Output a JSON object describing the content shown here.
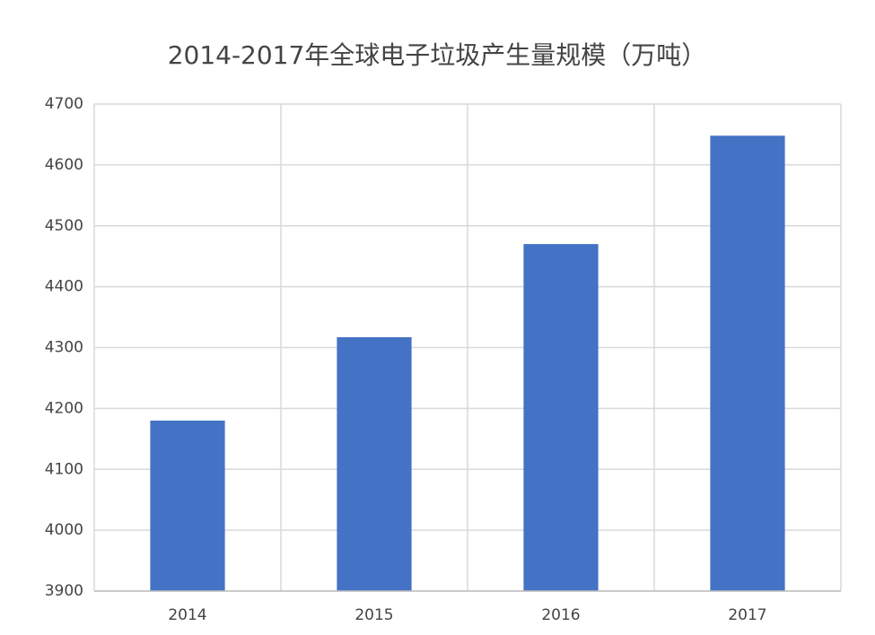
{
  "chart_data": {
    "type": "bar",
    "title": "2014-2017年全球电子垃圾产生量规模（万吨）",
    "categories": [
      "2014",
      "2015",
      "2016",
      "2017"
    ],
    "values": [
      4180,
      4317,
      4470,
      4648
    ],
    "color": "#4472c4",
    "ylim": [
      3900,
      4700
    ],
    "yticks": [
      3900,
      4000,
      4100,
      4200,
      4300,
      4400,
      4500,
      4600,
      4700
    ],
    "grid": true
  }
}
